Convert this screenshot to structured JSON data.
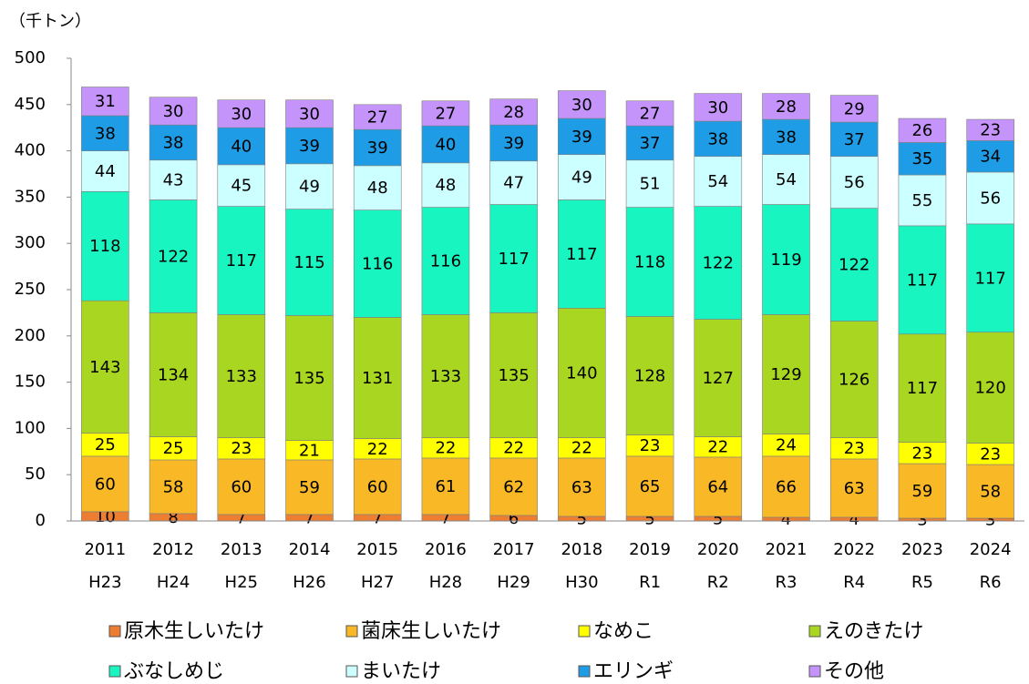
{
  "chart_data": {
    "type": "stacked_bar",
    "y_label": "（千トン）",
    "categories": [
      "2011",
      "2012",
      "2013",
      "2014",
      "2015",
      "2016",
      "2017",
      "2018",
      "2019",
      "2020",
      "2021",
      "2022",
      "2023",
      "2024"
    ],
    "era_labels": [
      "H23",
      "H24",
      "H25",
      "H26",
      "H27",
      "H28",
      "H29",
      "H30",
      "R1",
      "R2",
      "R3",
      "R4",
      "R5",
      "R6"
    ],
    "ylim": [
      0,
      500
    ],
    "yticks": [
      0,
      50,
      100,
      150,
      200,
      250,
      300,
      350,
      400,
      450,
      500
    ],
    "grid": false,
    "series": [
      {
        "name": "原木生しいたけ",
        "color": "#ed7d31",
        "values": [
          10,
          8,
          7,
          7,
          7,
          7,
          6,
          5,
          5,
          5,
          4,
          4,
          3,
          3
        ]
      },
      {
        "name": "菌床生しいたけ",
        "color": "#f9b825",
        "values": [
          60,
          58,
          60,
          59,
          60,
          61,
          62,
          63,
          65,
          64,
          66,
          63,
          59,
          58
        ]
      },
      {
        "name": "なめこ",
        "color": "#ffff00",
        "values": [
          25,
          25,
          23,
          21,
          22,
          22,
          22,
          22,
          23,
          22,
          24,
          23,
          23,
          23
        ]
      },
      {
        "name": "えのきたけ",
        "color": "#a9d620",
        "values": [
          143,
          134,
          133,
          135,
          131,
          133,
          135,
          140,
          128,
          127,
          129,
          126,
          117,
          120
        ]
      },
      {
        "name": "ぶなしめじ",
        "color": "#19f5c0",
        "values": [
          118,
          122,
          117,
          115,
          116,
          116,
          117,
          117,
          118,
          122,
          119,
          122,
          117,
          117
        ]
      },
      {
        "name": "まいたけ",
        "color": "#ccffff",
        "values": [
          44,
          43,
          45,
          49,
          48,
          48,
          47,
          49,
          51,
          54,
          54,
          56,
          55,
          56
        ]
      },
      {
        "name": "エリンギ",
        "color": "#1e9de6",
        "values": [
          38,
          38,
          40,
          39,
          39,
          40,
          39,
          39,
          37,
          38,
          38,
          37,
          35,
          34
        ]
      },
      {
        "name": "その他",
        "color": "#c594fa",
        "values": [
          31,
          30,
          30,
          30,
          27,
          27,
          28,
          30,
          27,
          30,
          28,
          29,
          26,
          23
        ]
      }
    ]
  }
}
